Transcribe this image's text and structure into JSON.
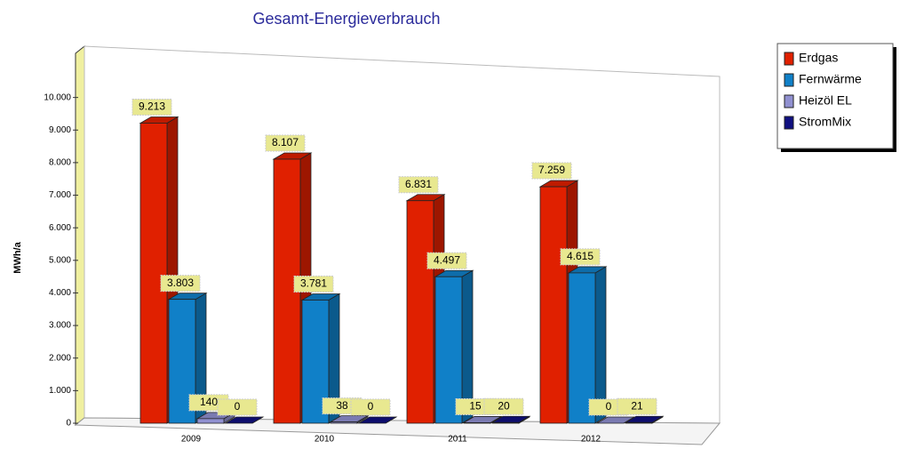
{
  "chart_data": {
    "type": "bar",
    "title": "Gesamt-Energieverbrauch",
    "y_label": "MWh/a",
    "categories": [
      "2009",
      "2010",
      "2011",
      "2012"
    ],
    "series": [
      {
        "name": "Erdgas",
        "color": "#e02000",
        "values": [
          9213,
          8107,
          6831,
          7259
        ],
        "value_labels": [
          "9.213",
          "8.107",
          "6.831",
          "7.259"
        ]
      },
      {
        "name": "Fernwärme",
        "color": "#1080c8",
        "values": [
          3803,
          3781,
          4497,
          4615
        ],
        "value_labels": [
          "3.803",
          "3.781",
          "4.497",
          "4.615"
        ]
      },
      {
        "name": "Heizöl EL",
        "color": "#9090d0",
        "values": [
          140,
          38,
          15,
          0
        ],
        "value_labels": [
          "140",
          "38",
          "15",
          "0"
        ]
      },
      {
        "name": "StromMix",
        "color": "#101080",
        "values": [
          0,
          0,
          20,
          21
        ],
        "value_labels": [
          "0",
          "0",
          "20",
          "21"
        ]
      }
    ],
    "ylim": [
      0,
      11000
    ],
    "yticks": [
      0,
      {
        "value": 1000,
        "label": "1.000"
      },
      {
        "value": 2000,
        "label": "2.000"
      },
      {
        "value": 3000,
        "label": "3.000"
      },
      {
        "value": 4000,
        "label": "4.000"
      },
      {
        "value": 5000,
        "label": "5.000"
      },
      {
        "value": 6000,
        "label": "6.000"
      },
      {
        "value": 7000,
        "label": "7.000"
      },
      {
        "value": 8000,
        "label": "8.000"
      },
      {
        "value": 9000,
        "label": "9.000"
      },
      {
        "value": 10000,
        "label": "10.000"
      }
    ],
    "legend": "top-right"
  }
}
